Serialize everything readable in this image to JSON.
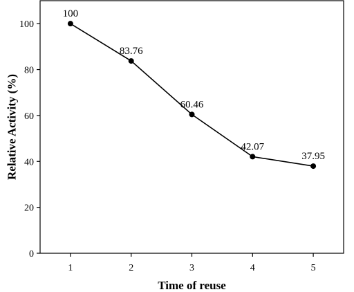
{
  "chart_data": {
    "type": "line",
    "title": "",
    "xlabel": "Time of reuse",
    "ylabel": "Relative Activity (%)",
    "x": [
      1,
      2,
      3,
      4,
      5
    ],
    "xticks": [
      "1",
      "2",
      "3",
      "4",
      "5"
    ],
    "xlim": [
      0.5,
      5.5
    ],
    "ylim": [
      0,
      110
    ],
    "yticks": [
      0,
      20,
      40,
      60,
      80,
      100
    ],
    "series": [
      {
        "values": [
          100,
          83.76,
          60.46,
          42.07,
          37.95
        ]
      }
    ],
    "data_labels": [
      "100",
      "83.76",
      "60.46",
      "42.07",
      "37.95"
    ],
    "grid": false,
    "legend": "none",
    "colors": {
      "line": "#000000",
      "marker": "#000000"
    }
  }
}
